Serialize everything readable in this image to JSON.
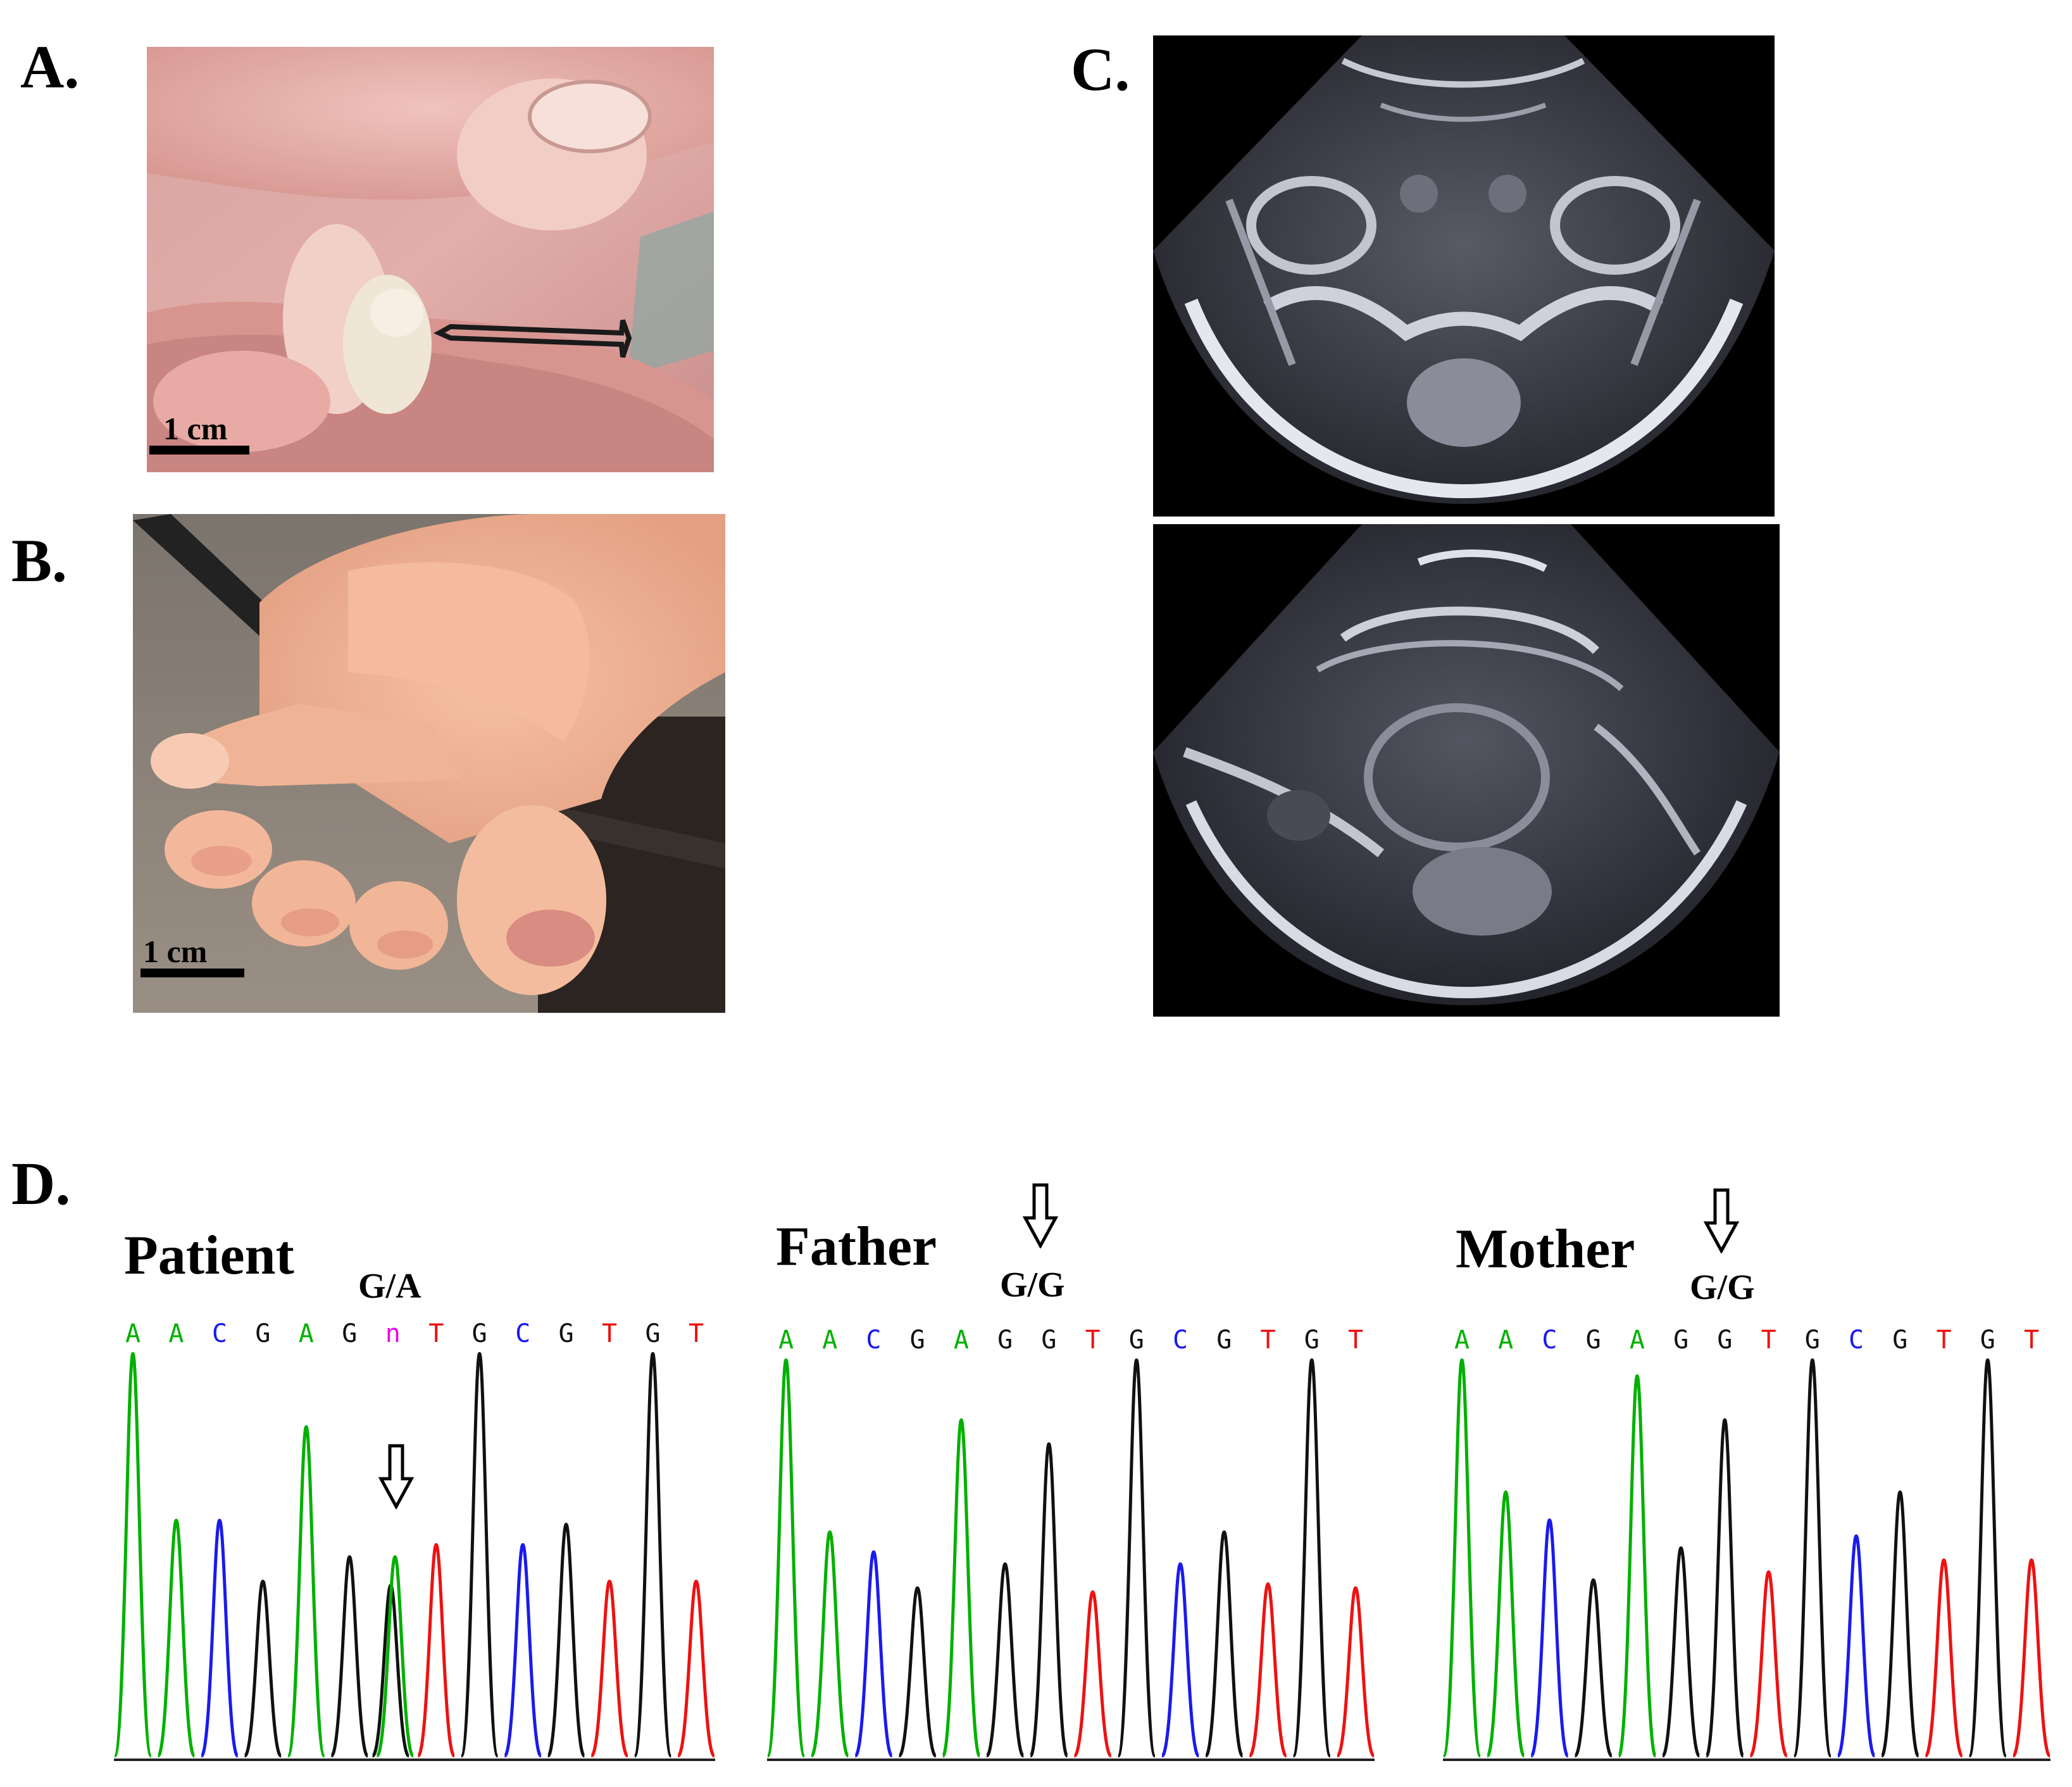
{
  "panels": {
    "a": {
      "label": "A.",
      "scale_label": "1 cm"
    },
    "b": {
      "label": "B.",
      "scale_label": "1 cm"
    },
    "c": {
      "label": "C."
    },
    "d": {
      "label": "D."
    }
  },
  "colors": {
    "A": "#00b000",
    "C": "#1a1aee",
    "G": "#111111",
    "T": "#ee1111",
    "n": "#ee00ee"
  },
  "chromatograms": [
    {
      "name": "Patient",
      "genotype": "G/A",
      "bases": [
        "A",
        "A",
        "C",
        "G",
        "A",
        "G",
        "n",
        "T",
        "G",
        "C",
        "G",
        "T",
        "G",
        "T"
      ],
      "peaks": [
        {
          "base": "A",
          "height": 0.99
        },
        {
          "base": "A",
          "height": 0.58
        },
        {
          "base": "C",
          "height": 0.58
        },
        {
          "base": "G",
          "height": 0.43
        },
        {
          "base": "A",
          "height": 0.81
        },
        {
          "base": "G",
          "height": 0.49
        },
        {
          "base": "G",
          "height": 0.42
        },
        {
          "base": "A",
          "height": 0.49
        },
        {
          "base": "T",
          "height": 0.52
        },
        {
          "base": "G",
          "height": 0.99
        },
        {
          "base": "C",
          "height": 0.52
        },
        {
          "base": "G",
          "height": 0.57
        },
        {
          "base": "T",
          "height": 0.43
        },
        {
          "base": "G",
          "height": 0.99
        },
        {
          "base": "T",
          "height": 0.43
        }
      ]
    },
    {
      "name": "Father",
      "genotype": "G/G",
      "bases": [
        "A",
        "A",
        "C",
        "G",
        "A",
        "G",
        "G",
        "T",
        "G",
        "C",
        "G",
        "T",
        "G",
        "T"
      ],
      "peaks": [
        {
          "base": "A",
          "height": 0.99
        },
        {
          "base": "A",
          "height": 0.56
        },
        {
          "base": "C",
          "height": 0.51
        },
        {
          "base": "G",
          "height": 0.42
        },
        {
          "base": "A",
          "height": 0.84
        },
        {
          "base": "G",
          "height": 0.48
        },
        {
          "base": "G",
          "height": 0.78
        },
        {
          "base": "T",
          "height": 0.41
        },
        {
          "base": "G",
          "height": 0.99
        },
        {
          "base": "C",
          "height": 0.48
        },
        {
          "base": "G",
          "height": 0.56
        },
        {
          "base": "T",
          "height": 0.43
        },
        {
          "base": "G",
          "height": 0.99
        },
        {
          "base": "T",
          "height": 0.42
        }
      ]
    },
    {
      "name": "Mother",
      "genotype": "G/G",
      "bases": [
        "A",
        "A",
        "C",
        "G",
        "A",
        "G",
        "G",
        "T",
        "G",
        "C",
        "G",
        "T",
        "G",
        "T"
      ],
      "peaks": [
        {
          "base": "A",
          "height": 0.99
        },
        {
          "base": "A",
          "height": 0.66
        },
        {
          "base": "C",
          "height": 0.59
        },
        {
          "base": "G",
          "height": 0.44
        },
        {
          "base": "A",
          "height": 0.95
        },
        {
          "base": "G",
          "height": 0.52
        },
        {
          "base": "G",
          "height": 0.84
        },
        {
          "base": "T",
          "height": 0.46
        },
        {
          "base": "G",
          "height": 0.99
        },
        {
          "base": "C",
          "height": 0.55
        },
        {
          "base": "G",
          "height": 0.66
        },
        {
          "base": "T",
          "height": 0.49
        },
        {
          "base": "G",
          "height": 0.99
        },
        {
          "base": "T",
          "height": 0.49
        }
      ]
    }
  ]
}
